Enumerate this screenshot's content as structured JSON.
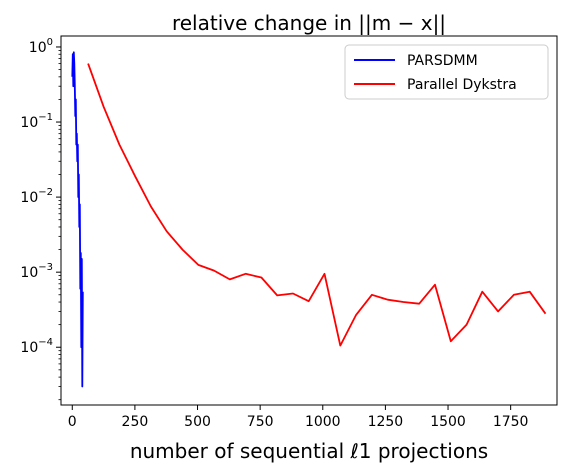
{
  "chart_data": {
    "type": "line",
    "title": "relative change in ||m − x||",
    "xlabel": "number of sequential ℓ1 projections",
    "ylabel": "",
    "xlim": [
      -45,
      1935
    ],
    "ylim": [
      1.7e-05,
      1.4
    ],
    "y_scale": "log",
    "grid": false,
    "legend_position": "top-right",
    "x_ticks": [
      {
        "value": 0,
        "label": "0"
      },
      {
        "value": 250,
        "label": "250"
      },
      {
        "value": 500,
        "label": "500"
      },
      {
        "value": 750,
        "label": "750"
      },
      {
        "value": 1000,
        "label": "1000"
      },
      {
        "value": 1250,
        "label": "1250"
      },
      {
        "value": 1500,
        "label": "1500"
      },
      {
        "value": 1750,
        "label": "1750"
      }
    ],
    "y_ticks": [
      {
        "value": 1,
        "base": "10",
        "exp": "0"
      },
      {
        "value": 0.1,
        "base": "10",
        "exp": "−1"
      },
      {
        "value": 0.01,
        "base": "10",
        "exp": "−2"
      },
      {
        "value": 0.001,
        "base": "10",
        "exp": "−3"
      },
      {
        "value": 0.0001,
        "base": "10",
        "exp": "−4"
      }
    ],
    "series": [
      {
        "name": "PARSDMM",
        "color": "#0000ff",
        "x": [
          0,
          2,
          4,
          6,
          8,
          10,
          12,
          14,
          16,
          18,
          20,
          22,
          24,
          26,
          28,
          30,
          32,
          34,
          36,
          38,
          40,
          42
        ],
        "y": [
          0.4,
          0.8,
          0.3,
          0.85,
          0.6,
          0.3,
          0.12,
          0.2,
          0.05,
          0.07,
          0.03,
          0.05,
          0.01,
          0.02,
          0.004,
          0.008,
          0.0006,
          0.0018,
          0.0001,
          0.0015,
          3e-05,
          0.00055
        ]
      },
      {
        "name": "Parallel Dykstra",
        "color": "#ff0000",
        "x": [
          63,
          125,
          188,
          251,
          314,
          377,
          440,
          503,
          566,
          629,
          692,
          755,
          818,
          881,
          944,
          1007,
          1070,
          1133,
          1196,
          1259,
          1322,
          1385,
          1448,
          1511,
          1574,
          1637,
          1700,
          1763,
          1826,
          1889
        ],
        "y": [
          0.6,
          0.16,
          0.05,
          0.019,
          0.0075,
          0.0035,
          0.002,
          0.00125,
          0.00105,
          0.0008,
          0.00095,
          0.00085,
          0.00049,
          0.00052,
          0.00041,
          0.00095,
          0.000105,
          0.00027,
          0.0005,
          0.00043,
          0.0004,
          0.00038,
          0.00068,
          0.00012,
          0.0002,
          0.00055,
          0.0003,
          0.0005,
          0.00055,
          0.00028
        ]
      }
    ]
  }
}
